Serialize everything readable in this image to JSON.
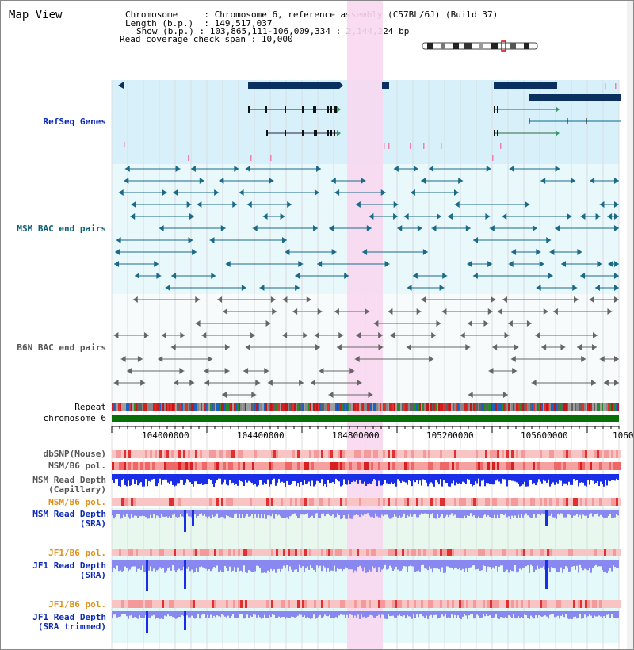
{
  "title": "Map View",
  "info": {
    "chromosome_label": "Chromosome",
    "chromosome_value": "Chromosome 6, reference assembly (C57BL/6J) (Build 37)",
    "length_label": "Length (b.p.)",
    "length_value": "149,517,037",
    "show_label": "Show (b.p.)",
    "show_value": "103,865,111-106,009,334 : 2,144,224 bp",
    "coverage_label": "Read coverage check span",
    "coverage_value": "10,000"
  },
  "tracks": {
    "refseq": "RefSeq Genes",
    "msm_bac": "MSM BAC end pairs",
    "b6n_bac": "B6N BAC end pairs",
    "repeat": "Repeat",
    "chromosome": "chromosome 6",
    "dbsnp": "dbSNP(Mouse)",
    "msm_b6_pol_1": "MSM/B6 pol.",
    "msm_read_depth_cap": "MSM Read Depth\n(Capillary)",
    "msm_b6_pol_2": "MSM/B6 pol.",
    "msm_read_depth_sra": "MSM Read Depth\n(SRA)",
    "jf1_b6_pol_1": "JF1/B6 pol.",
    "jf1_read_depth_sra": "JF1 Read Depth\n(SRA)",
    "jf1_b6_pol_2": "JF1/B6 pol.",
    "jf1_read_depth_trim": "JF1 Read Depth\n(SRA trimmed)"
  },
  "axis": {
    "ticks": [
      "104000000",
      "104400000",
      "104800000",
      "105200000",
      "105600000",
      "1060"
    ]
  },
  "colors": {
    "highlight": "#f8d8f0",
    "refseq_bg": "#d8f0fa",
    "msm_bg": "#e8f8fb",
    "gene_dark": "#0a3060",
    "msm_feature": "#1a6a88",
    "b6n_feature": "#666666",
    "chrom_green": "#067006",
    "depth_blue": "#1a2ee8",
    "depth_light": "#8888f0"
  }
}
